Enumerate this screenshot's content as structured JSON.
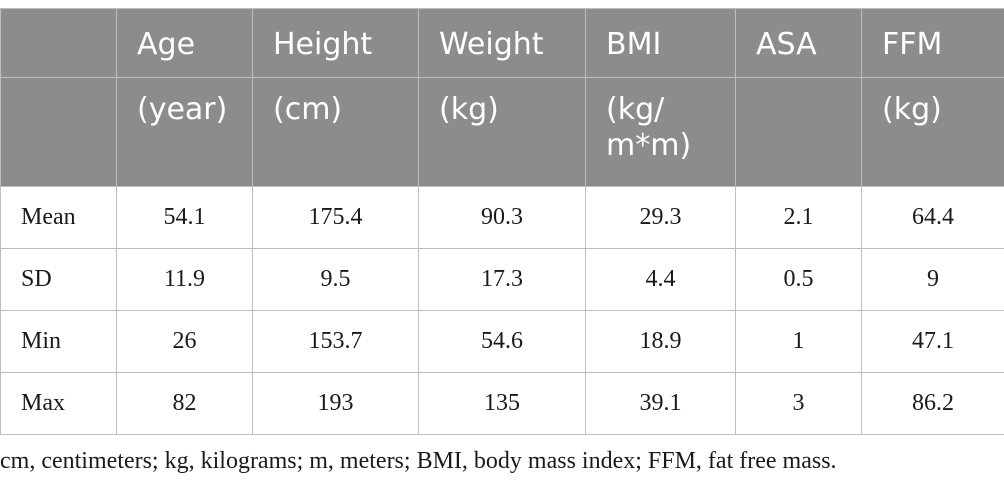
{
  "table": {
    "header_row1": [
      "",
      "Age",
      "Height",
      "Weight",
      "BMI",
      "ASA",
      "FFM"
    ],
    "header_row2": [
      "",
      "(year)",
      "(cm)",
      "(kg)",
      "(kg/\nm*m)",
      "",
      "(kg)"
    ],
    "rows": [
      {
        "label": "Mean",
        "values": [
          "54.1",
          "175.4",
          "90.3",
          "29.3",
          "2.1",
          "64.4"
        ]
      },
      {
        "label": "SD",
        "values": [
          "11.9",
          "9.5",
          "17.3",
          "4.4",
          "0.5",
          "9"
        ]
      },
      {
        "label": "Min",
        "values": [
          "26",
          "153.7",
          "54.6",
          "18.9",
          "1",
          "47.1"
        ]
      },
      {
        "label": "Max",
        "values": [
          "82",
          "193",
          "135",
          "39.1",
          "3",
          "86.2"
        ]
      }
    ]
  },
  "footnote": "cm, centimeters; kg, kilograms; m, meters; BMI, body mass index; FFM, fat free mass.",
  "colors": {
    "header_bg": "#8c8c8c",
    "header_text": "#ffffff",
    "grid": "#bdbdbd"
  }
}
